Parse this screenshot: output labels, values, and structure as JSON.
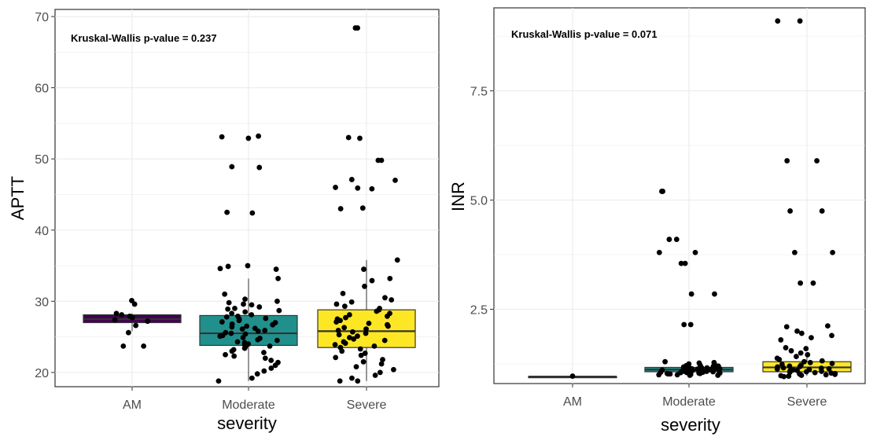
{
  "chart_data": [
    {
      "type": "box",
      "categories": [
        "AM",
        "Moderate",
        "Severe"
      ],
      "xlabel": "severity",
      "ylabel": "APTT",
      "ylim": [
        18,
        71
      ],
      "yticks": [
        20,
        30,
        40,
        50,
        60,
        70
      ],
      "grid": true,
      "annotation": "Kruskal-Wallis p-value = 0.237",
      "colors": {
        "AM": "#440154",
        "Moderate": "#21908C",
        "Severe": "#FDE725"
      },
      "boxes": [
        {
          "category": "AM",
          "q1": 27.0,
          "median": 27.5,
          "q3": 28.1,
          "whisker_low": 25.8,
          "whisker_high": 28.3
        },
        {
          "category": "Moderate",
          "q1": 23.8,
          "median": 25.5,
          "q3": 28.0,
          "whisker_low": 18.8,
          "whisker_high": 33.2
        },
        {
          "category": "Severe",
          "q1": 23.5,
          "median": 25.8,
          "q3": 28.8,
          "whisker_low": 18.8,
          "whisker_high": 35.8
        }
      ],
      "points": [
        {
          "category": "AM",
          "values": [
            30.1,
            29.6,
            28.3,
            28.1,
            27.9,
            27.7,
            27.4,
            27.2,
            26.6,
            25.6,
            23.7,
            23.7
          ]
        },
        {
          "category": "Moderate",
          "values": [
            53.2,
            53.1,
            52.9,
            48.9,
            48.8,
            42.5,
            42.4,
            35.0,
            34.9,
            34.6,
            34.5,
            33.2,
            31.0,
            30.3,
            30.0,
            29.8,
            29.6,
            29.5,
            29.2,
            29.0,
            28.9,
            28.7,
            28.5,
            28.3,
            28.1,
            27.9,
            27.8,
            27.6,
            27.5,
            27.3,
            27.1,
            27.0,
            26.8,
            26.7,
            26.5,
            26.4,
            26.2,
            26.1,
            25.9,
            25.8,
            25.6,
            25.5,
            25.4,
            25.2,
            25.1,
            24.9,
            24.8,
            24.6,
            24.5,
            24.3,
            24.2,
            24.0,
            23.9,
            23.7,
            23.6,
            23.4,
            23.2,
            23.0,
            22.8,
            22.5,
            22.3,
            22.0,
            21.7,
            21.4,
            21.0,
            20.6,
            20.2,
            19.8,
            19.2,
            18.8
          ]
        },
        {
          "category": "Severe",
          "values": [
            68.4,
            68.4,
            53.0,
            52.9,
            49.8,
            49.8,
            47.1,
            47.0,
            46.0,
            45.9,
            45.8,
            43.1,
            43.0,
            35.8,
            34.5,
            33.2,
            32.9,
            32.1,
            31.1,
            30.5,
            30.2,
            29.9,
            29.6,
            29.3,
            29.0,
            28.8,
            28.6,
            28.3,
            28.1,
            27.9,
            27.7,
            27.5,
            27.3,
            27.1,
            26.9,
            26.7,
            26.5,
            26.3,
            26.1,
            25.9,
            25.7,
            25.5,
            25.3,
            25.1,
            24.9,
            24.7,
            24.5,
            24.3,
            24.1,
            23.9,
            23.7,
            23.5,
            23.3,
            23.0,
            22.7,
            22.4,
            22.1,
            21.8,
            21.5,
            21.2,
            20.8,
            20.4,
            20.0,
            19.6,
            19.2,
            18.8,
            18.8
          ]
        }
      ]
    },
    {
      "type": "box",
      "categories": [
        "AM",
        "Moderate",
        "Severe"
      ],
      "xlabel": "severity",
      "ylabel": "INR",
      "ylim": [
        0.8,
        9.4
      ],
      "yticks": [
        2.5,
        5.0,
        7.5
      ],
      "ytick_labels": [
        "2.5",
        "5.0",
        "7.5"
      ],
      "grid": true,
      "annotation": "Kruskal-Wallis p-value = 0.071",
      "colors": {
        "AM": "#440154",
        "Moderate": "#21908C",
        "Severe": "#FDE725"
      },
      "boxes": [
        {
          "category": "AM",
          "q1": 0.96,
          "median": 0.96,
          "q3": 0.96,
          "whisker_low": 0.96,
          "whisker_high": 0.96
        },
        {
          "category": "Moderate",
          "q1": 1.07,
          "median": 1.12,
          "q3": 1.17,
          "whisker_low": 1.0,
          "whisker_high": 1.3
        },
        {
          "category": "Severe",
          "q1": 1.07,
          "median": 1.17,
          "q3": 1.3,
          "whisker_low": 0.98,
          "whisker_high": 1.5
        }
      ],
      "points": [
        {
          "category": "AM",
          "values": [
            0.97
          ]
        },
        {
          "category": "Moderate",
          "values": [
            5.2,
            5.2,
            4.1,
            4.1,
            3.8,
            3.8,
            3.55,
            3.55,
            2.85,
            2.85,
            2.15,
            2.15,
            1.3,
            1.28,
            1.27,
            1.25,
            1.24,
            1.22,
            1.21,
            1.2,
            1.19,
            1.18,
            1.17,
            1.16,
            1.16,
            1.15,
            1.14,
            1.14,
            1.13,
            1.12,
            1.12,
            1.11,
            1.11,
            1.1,
            1.1,
            1.09,
            1.09,
            1.08,
            1.08,
            1.07,
            1.07,
            1.06,
            1.06,
            1.05,
            1.05,
            1.04,
            1.04,
            1.03,
            1.03,
            1.02,
            1.02,
            1.01,
            1.0,
            1.0,
            0.99,
            0.99
          ]
        },
        {
          "category": "Severe",
          "values": [
            9.1,
            9.1,
            5.9,
            5.9,
            4.75,
            4.75,
            3.8,
            3.8,
            3.1,
            3.1,
            2.12,
            2.1,
            2.0,
            1.95,
            1.9,
            1.85,
            1.8,
            1.62,
            1.6,
            1.55,
            1.5,
            1.46,
            1.42,
            1.38,
            1.35,
            1.32,
            1.3,
            1.28,
            1.26,
            1.24,
            1.22,
            1.2,
            1.19,
            1.18,
            1.16,
            1.15,
            1.14,
            1.13,
            1.12,
            1.11,
            1.1,
            1.09,
            1.08,
            1.07,
            1.06,
            1.05,
            1.04,
            1.03,
            1.02,
            1.01,
            1.0,
            0.99,
            0.98,
            0.97,
            0.96
          ]
        }
      ]
    }
  ]
}
